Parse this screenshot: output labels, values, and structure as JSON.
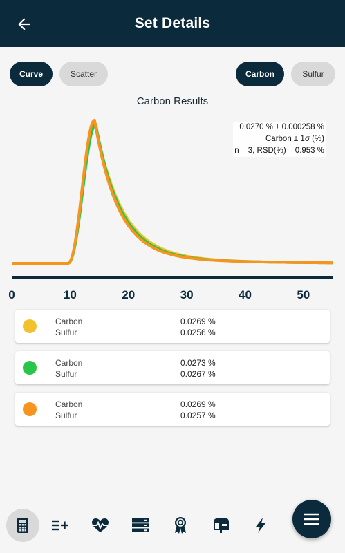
{
  "header": {
    "title": "Set Details",
    "back_icon": "arrow-left-icon"
  },
  "toggles": {
    "view": [
      {
        "label": "Curve",
        "active": true
      },
      {
        "label": "Scatter",
        "active": false
      }
    ],
    "element": [
      {
        "label": "Carbon",
        "active": true
      },
      {
        "label": "Sulfur",
        "active": false
      }
    ]
  },
  "chart_data": {
    "type": "line",
    "title": "Carbon Results",
    "xlabel": "",
    "ylabel": "",
    "xlim": [
      0,
      55
    ],
    "x_ticks": [
      "0",
      "10",
      "20",
      "30",
      "40",
      "50"
    ],
    "y_axis_visible": false,
    "grid": false,
    "series": [
      {
        "color": "#f2c12e",
        "peak_x": 14.3,
        "peak": 1.0,
        "baseline": 0.0,
        "tail": 4.5
      },
      {
        "color": "#2bc44a",
        "peak_x": 14.4,
        "peak": 0.99,
        "baseline": 0.0,
        "tail": 4.2
      },
      {
        "color": "#f7941d",
        "peak_x": 14.2,
        "peak": 1.02,
        "baseline": 0.0,
        "tail": 4.0
      }
    ],
    "annotation": {
      "line1": "0.0270 % ± 0.000258 %",
      "line2": "Carbon ± 1σ (%)",
      "line3": "n = 3, RSD(%) = 0.953 %"
    }
  },
  "results": [
    {
      "color": "#f2c12e",
      "rows": [
        {
          "label": "Carbon",
          "value": "0.0269 %"
        },
        {
          "label": "Sulfur",
          "value": "0.0256 %"
        }
      ]
    },
    {
      "color": "#2bc44a",
      "rows": [
        {
          "label": "Carbon",
          "value": "0.0273 %"
        },
        {
          "label": "Sulfur",
          "value": "0.0267 %"
        }
      ]
    },
    {
      "color": "#f7941d",
      "rows": [
        {
          "label": "Carbon",
          "value": "0.0269 %"
        },
        {
          "label": "Sulfur",
          "value": "0.0257 %"
        }
      ]
    }
  ],
  "bottom_nav": [
    {
      "icon": "calculator-icon",
      "selected": true
    },
    {
      "icon": "list-add-icon",
      "selected": false
    },
    {
      "icon": "heart-pulse-icon",
      "selected": false
    },
    {
      "icon": "server-icon",
      "selected": false
    },
    {
      "icon": "award-icon",
      "selected": false
    },
    {
      "icon": "mailbox-icon",
      "selected": false
    },
    {
      "icon": "lightning-icon",
      "selected": false
    }
  ],
  "fab_icon": "menu-icon"
}
